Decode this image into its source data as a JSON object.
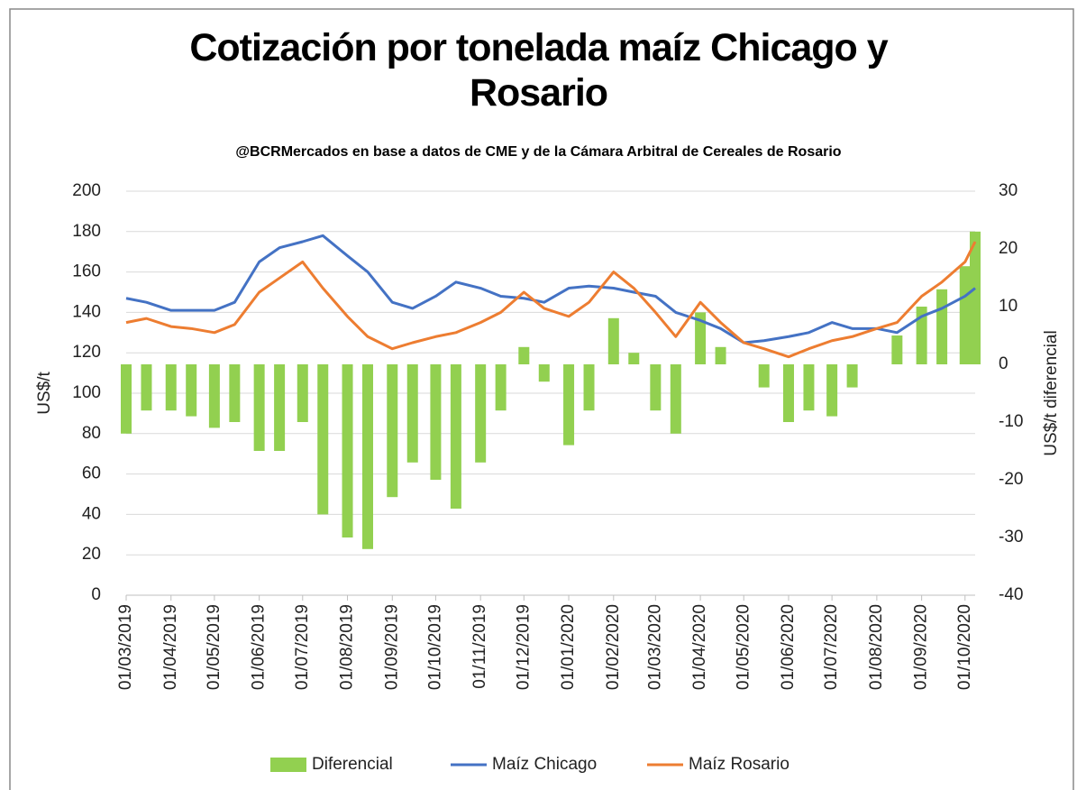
{
  "chart_data": {
    "type": "combo",
    "title": "Cotización por tonelada maíz Chicago y Rosario",
    "subtitle": "@BCRMercados  en base a datos de CME y de la Cámara Arbitral de Cereales de Rosario",
    "y_label": "US$/t",
    "y2_label": "US$/t diferencial",
    "x": [
      "01/03/2019",
      "15/03/2019",
      "01/04/2019",
      "15/04/2019",
      "01/05/2019",
      "15/05/2019",
      "01/06/2019",
      "15/06/2019",
      "01/07/2019",
      "15/07/2019",
      "01/08/2019",
      "15/08/2019",
      "01/09/2019",
      "15/09/2019",
      "01/10/2019",
      "15/10/2019",
      "01/11/2019",
      "15/11/2019",
      "01/12/2019",
      "15/12/2019",
      "01/01/2020",
      "15/01/2020",
      "01/02/2020",
      "15/02/2020",
      "01/03/2020",
      "15/03/2020",
      "01/04/2020",
      "15/04/2020",
      "01/05/2020",
      "15/05/2020",
      "01/06/2020",
      "15/06/2020",
      "01/07/2020",
      "15/07/2020",
      "01/08/2020",
      "15/08/2020",
      "01/09/2020",
      "15/09/2020",
      "01/10/2020",
      "08/10/2020"
    ],
    "series": [
      {
        "name": "Diferencial",
        "type": "bar",
        "axis": "y2",
        "color": "#92d050",
        "values": [
          -12,
          -8,
          -8,
          -9,
          -11,
          -10,
          -15,
          -15,
          -10,
          -26,
          -30,
          -32,
          -23,
          -17,
          -20,
          -25,
          -17,
          -8,
          3,
          -3,
          -14,
          -8,
          8,
          2,
          -8,
          -12,
          9,
          3,
          0,
          -4,
          -10,
          -8,
          -9,
          -4,
          0,
          5,
          10,
          13,
          17,
          23
        ]
      },
      {
        "name": "Maíz Chicago",
        "type": "line",
        "color": "#4472c4",
        "values": [
          147,
          145,
          141,
          141,
          141,
          145,
          165,
          172,
          175,
          178,
          168,
          160,
          145,
          142,
          148,
          155,
          152,
          148,
          147,
          145,
          152,
          153,
          152,
          150,
          148,
          140,
          136,
          132,
          125,
          126,
          128,
          130,
          135,
          132,
          132,
          130,
          138,
          142,
          148,
          152
        ]
      },
      {
        "name": "Maíz Rosario",
        "type": "line",
        "color": "#ed7d31",
        "values": [
          135,
          137,
          133,
          132,
          130,
          134,
          150,
          157,
          165,
          152,
          138,
          128,
          122,
          125,
          128,
          130,
          135,
          140,
          150,
          142,
          138,
          145,
          160,
          152,
          140,
          128,
          145,
          135,
          125,
          122,
          118,
          122,
          126,
          128,
          132,
          135,
          148,
          155,
          165,
          175
        ]
      }
    ],
    "xlim": [
      "01/03/2019",
      "08/10/2020"
    ],
    "xticks": [
      "01/03/2019",
      "01/04/2019",
      "01/05/2019",
      "01/06/2019",
      "01/07/2019",
      "01/08/2019",
      "01/09/2019",
      "01/10/2019",
      "01/11/2019",
      "01/12/2019",
      "01/01/2020",
      "01/02/2020",
      "01/03/2020",
      "01/04/2020",
      "01/05/2020",
      "01/06/2020",
      "01/07/2020",
      "01/08/2020",
      "01/09/2020",
      "01/10/2020"
    ],
    "ylim": [
      0,
      200
    ],
    "yticks": [
      0,
      20,
      40,
      60,
      80,
      100,
      120,
      140,
      160,
      180,
      200
    ],
    "y2lim": [
      -40,
      30
    ],
    "y2ticks": [
      -40,
      -30,
      -20,
      -10,
      0,
      10,
      20,
      30
    ],
    "grid": true
  }
}
